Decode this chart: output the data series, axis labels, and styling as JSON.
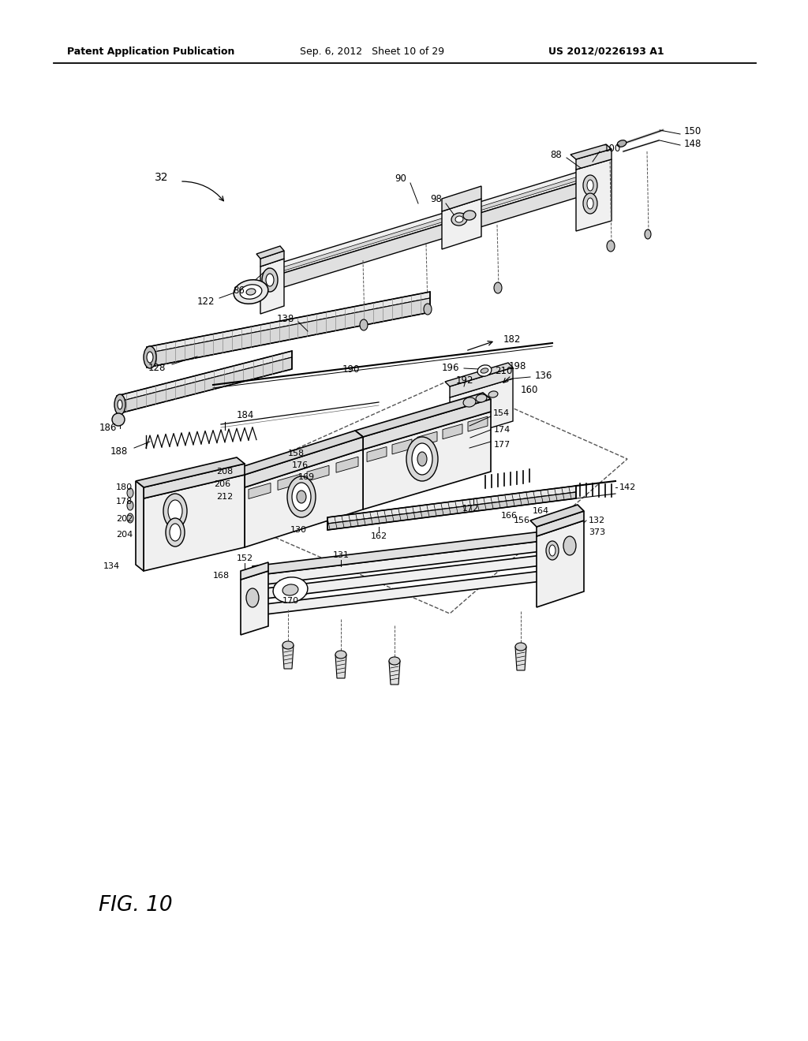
{
  "bg_color": "#ffffff",
  "header_left": "Patent Application Publication",
  "header_mid": "Sep. 6, 2012   Sheet 10 of 29",
  "header_right": "US 2012/0226193 A1",
  "figure_label": "FIG. 10",
  "lc": "#000000",
  "lw_main": 1.0,
  "lw_thin": 0.6,
  "lw_thick": 1.4
}
